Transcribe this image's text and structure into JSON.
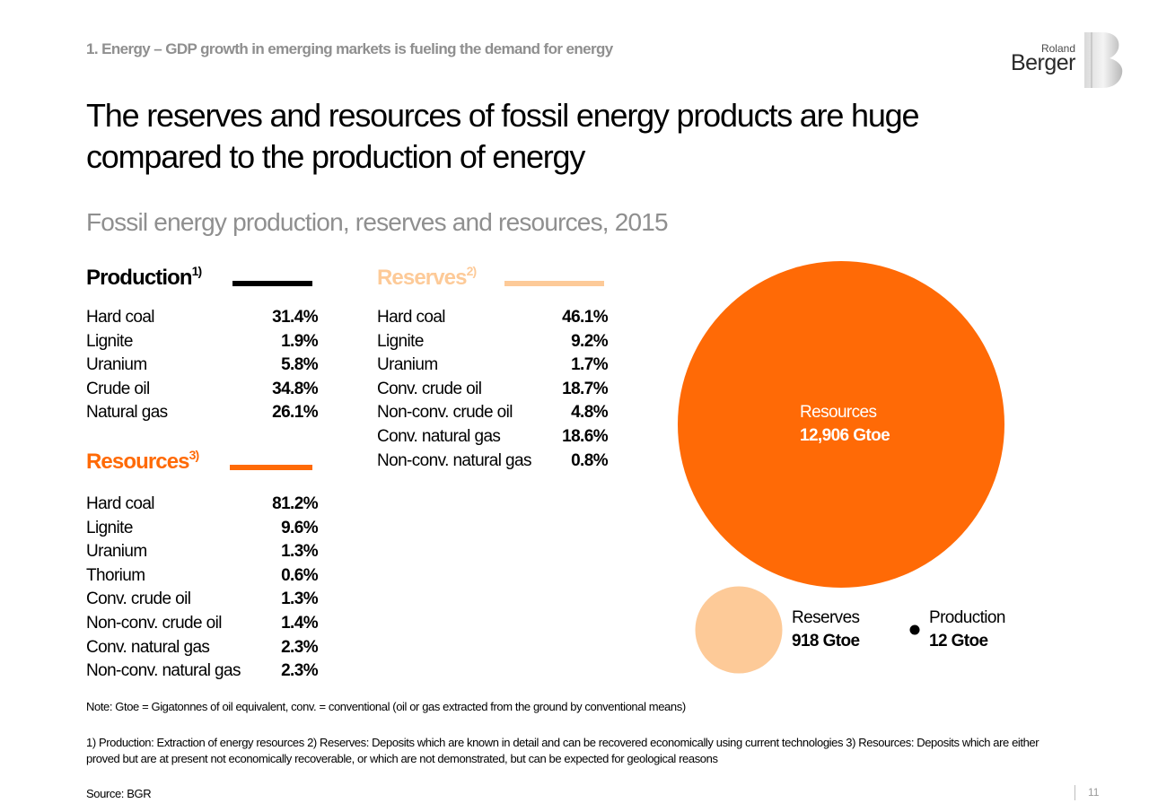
{
  "header": {
    "section_label": "1. Energy – GDP growth in emerging markets is fueling the demand for energy",
    "logo_top": "Roland",
    "logo_bottom": "Berger"
  },
  "headline": "The reserves and resources of fossil energy products are huge compared to the production of energy",
  "subtitle": "Fossil energy production, reserves and resources, 2015",
  "colors": {
    "production": "#000000",
    "reserves": "#fdca98",
    "resources": "#ff6a06",
    "muted_text": "#8f8f8f"
  },
  "chart_data": {
    "type": "bubble",
    "unit": "Gtoe",
    "bubbles": [
      {
        "name": "Resources",
        "value": 12906,
        "value_label": "12,906 Gtoe",
        "color": "#ff6a06"
      },
      {
        "name": "Reserves",
        "value": 918,
        "value_label": "918 Gtoe",
        "color": "#fdca98"
      },
      {
        "name": "Production",
        "value": 12,
        "value_label": "12 Gtoe",
        "color": "#000000"
      }
    ],
    "breakdowns": {
      "production": {
        "title": "Production",
        "footnote_mark": "1)",
        "items": [
          {
            "label": "Hard coal",
            "value": "31.4%"
          },
          {
            "label": "Lignite",
            "value": "1.9%"
          },
          {
            "label": "Uranium",
            "value": "5.8%"
          },
          {
            "label": "Crude oil",
            "value": "34.8%"
          },
          {
            "label": "Natural gas",
            "value": "26.1%"
          }
        ]
      },
      "reserves": {
        "title": "Reserves",
        "footnote_mark": "2)",
        "items": [
          {
            "label": "Hard coal",
            "value": "46.1%"
          },
          {
            "label": "Lignite",
            "value": "9.2%"
          },
          {
            "label": "Uranium",
            "value": "1.7%"
          },
          {
            "label": "Conv. crude oil",
            "value": "18.7%"
          },
          {
            "label": "Non-conv. crude oil",
            "value": "4.8%"
          },
          {
            "label": "Conv. natural gas",
            "value": "18.6%"
          },
          {
            "label": "Non-conv. natural gas",
            "value": "0.8%"
          }
        ]
      },
      "resources": {
        "title": "Resources",
        "footnote_mark": "3)",
        "items": [
          {
            "label": "Hard coal",
            "value": "81.2%"
          },
          {
            "label": "Lignite",
            "value": "9.6%"
          },
          {
            "label": "Uranium",
            "value": "1.3%"
          },
          {
            "label": "Thorium",
            "value": "0.6%"
          },
          {
            "label": "Conv. crude oil",
            "value": "1.3%"
          },
          {
            "label": "Non-conv. crude oil",
            "value": "1.4%"
          },
          {
            "label": "Conv. natural gas",
            "value": "2.3%"
          },
          {
            "label": "Non-conv. natural gas",
            "value": "2.3%"
          }
        ]
      }
    }
  },
  "footer": {
    "note": "Note: Gtoe = Gigatonnes of oil equivalent, conv. = conventional (oil or gas extracted from the ground by conventional means)",
    "footnote": "1) Production: Extraction of energy resources  2) Reserves: Deposits which are known in detail and can be recovered economically using current technologies 3) Resources: Deposits which are either proved but are at present not economically recoverable, or which are not demonstrated, but can be expected for geological reasons",
    "source": "Source: BGR",
    "page_number": "11"
  }
}
